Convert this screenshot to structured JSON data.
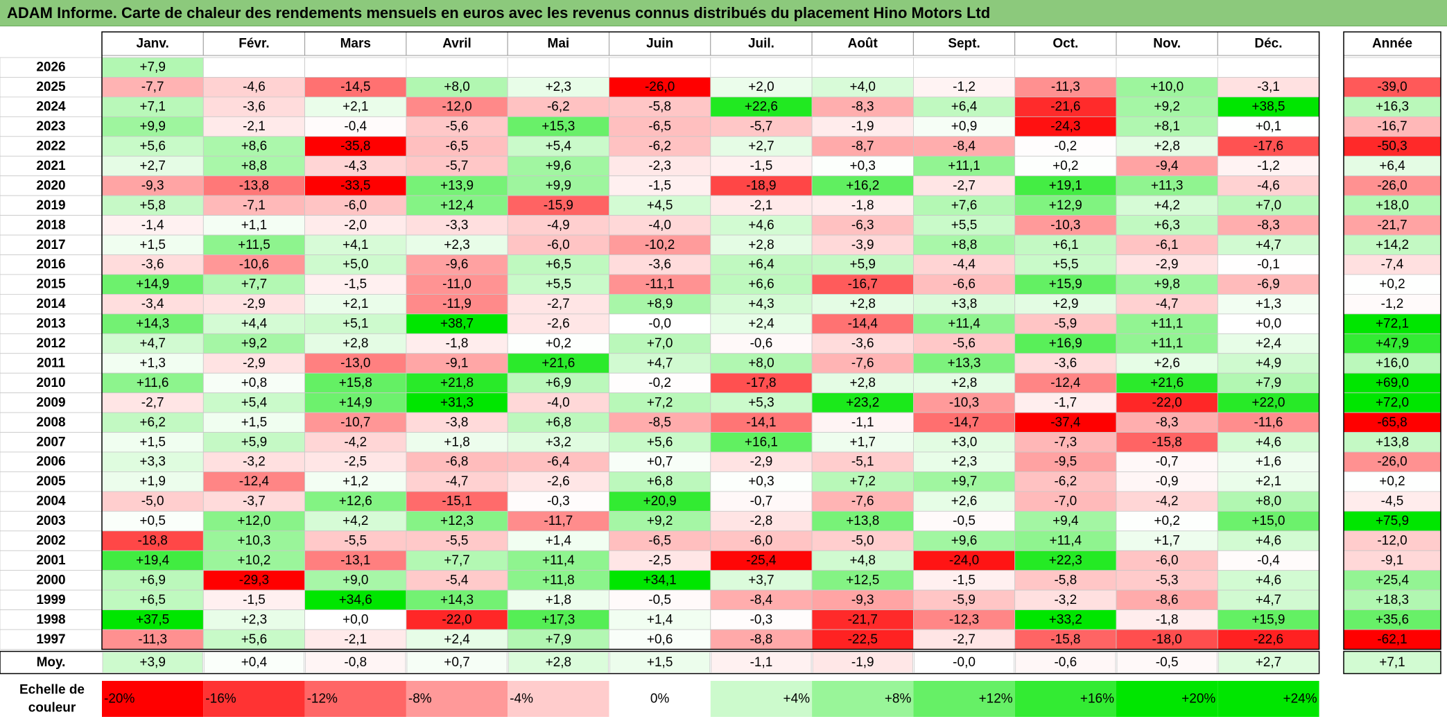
{
  "title": "ADAM Informe. Carte de chaleur des rendements mensuels en euros avec les revenus connus distribués du placement Hino Motors Ltd",
  "chart_data": {
    "type": "heatmap",
    "months": [
      "Janv.",
      "Févr.",
      "Mars",
      "Avril",
      "Mai",
      "Juin",
      "Juil.",
      "Août",
      "Sept.",
      "Oct.",
      "Nov.",
      "Déc."
    ],
    "year_header": "Année",
    "rows": [
      {
        "year": "2026",
        "values": [
          "+7,9",
          "",
          "",
          "",
          "",
          "",
          "",
          "",
          "",
          "",
          "",
          ""
        ],
        "annual": ""
      },
      {
        "year": "2025",
        "values": [
          "-7,7",
          "-4,6",
          "-14,5",
          "+8,0",
          "+2,3",
          "-26,0",
          "+2,0",
          "+4,0",
          "-1,2",
          "-11,3",
          "+10,0",
          "-3,1"
        ],
        "annual": "-39,0"
      },
      {
        "year": "2024",
        "values": [
          "+7,1",
          "-3,6",
          "+2,1",
          "-12,0",
          "-6,2",
          "-5,8",
          "+22,6",
          "-8,3",
          "+6,4",
          "-21,6",
          "+9,2",
          "+38,5"
        ],
        "annual": "+16,3"
      },
      {
        "year": "2023",
        "values": [
          "+9,9",
          "-2,1",
          "-0,4",
          "-5,6",
          "+15,3",
          "-6,5",
          "-5,7",
          "-1,9",
          "+0,9",
          "-24,3",
          "+8,1",
          "+0,1"
        ],
        "annual": "-16,7"
      },
      {
        "year": "2022",
        "values": [
          "+5,6",
          "+8,6",
          "-35,8",
          "-6,5",
          "+5,4",
          "-6,2",
          "+2,7",
          "-8,7",
          "-8,4",
          "-0,2",
          "+2,8",
          "-17,6"
        ],
        "annual": "-50,3"
      },
      {
        "year": "2021",
        "values": [
          "+2,7",
          "+8,8",
          "-4,3",
          "-5,7",
          "+9,6",
          "-2,3",
          "-1,5",
          "+0,3",
          "+11,1",
          "+0,2",
          "-9,4",
          "-1,2"
        ],
        "annual": "+6,4"
      },
      {
        "year": "2020",
        "values": [
          "-9,3",
          "-13,8",
          "-33,5",
          "+13,9",
          "+9,9",
          "-1,5",
          "-18,9",
          "+16,2",
          "-2,7",
          "+19,1",
          "+11,3",
          "-4,6"
        ],
        "annual": "-26,0"
      },
      {
        "year": "2019",
        "values": [
          "+5,8",
          "-7,1",
          "-6,0",
          "+12,4",
          "-15,9",
          "+4,5",
          "-2,1",
          "-1,8",
          "+7,6",
          "+12,9",
          "+4,2",
          "+7,0"
        ],
        "annual": "+18,0"
      },
      {
        "year": "2018",
        "values": [
          "-1,4",
          "+1,1",
          "-2,0",
          "-3,3",
          "-4,9",
          "-4,0",
          "+4,6",
          "-6,3",
          "+5,5",
          "-10,3",
          "+6,3",
          "-8,3"
        ],
        "annual": "-21,7"
      },
      {
        "year": "2017",
        "values": [
          "+1,5",
          "+11,5",
          "+4,1",
          "+2,3",
          "-6,0",
          "-10,2",
          "+2,8",
          "-3,9",
          "+8,8",
          "+6,1",
          "-6,1",
          "+4,7"
        ],
        "annual": "+14,2"
      },
      {
        "year": "2016",
        "values": [
          "-3,6",
          "-10,6",
          "+5,0",
          "-9,6",
          "+6,5",
          "-3,6",
          "+6,4",
          "+5,9",
          "-4,4",
          "+5,5",
          "-2,9",
          "-0,1"
        ],
        "annual": "-7,4"
      },
      {
        "year": "2015",
        "values": [
          "+14,9",
          "+7,7",
          "-1,5",
          "-11,0",
          "+5,5",
          "-11,1",
          "+6,6",
          "-16,7",
          "-6,6",
          "+15,9",
          "+9,8",
          "-6,9"
        ],
        "annual": "+0,2"
      },
      {
        "year": "2014",
        "values": [
          "-3,4",
          "-2,9",
          "+2,1",
          "-11,9",
          "-2,7",
          "+8,9",
          "+4,3",
          "+2,8",
          "+3,8",
          "+2,9",
          "-4,7",
          "+1,3"
        ],
        "annual": "-1,2"
      },
      {
        "year": "2013",
        "values": [
          "+14,3",
          "+4,4",
          "+5,1",
          "+38,7",
          "-2,6",
          "-0,0",
          "+2,4",
          "-14,4",
          "+11,4",
          "-5,9",
          "+11,1",
          "+0,0"
        ],
        "annual": "+72,1"
      },
      {
        "year": "2012",
        "values": [
          "+4,7",
          "+9,2",
          "+2,8",
          "-1,8",
          "+0,2",
          "+7,0",
          "-0,6",
          "-3,6",
          "-5,6",
          "+16,9",
          "+11,1",
          "+2,4"
        ],
        "annual": "+47,9"
      },
      {
        "year": "2011",
        "values": [
          "+1,3",
          "-2,9",
          "-13,0",
          "-9,1",
          "+21,6",
          "+4,7",
          "+8,0",
          "-7,6",
          "+13,3",
          "-3,6",
          "+2,6",
          "+4,9"
        ],
        "annual": "+16,0"
      },
      {
        "year": "2010",
        "values": [
          "+11,6",
          "+0,8",
          "+15,8",
          "+21,8",
          "+6,9",
          "-0,2",
          "-17,8",
          "+2,8",
          "+2,8",
          "-12,4",
          "+21,6",
          "+7,9"
        ],
        "annual": "+69,0"
      },
      {
        "year": "2009",
        "values": [
          "-2,7",
          "+5,4",
          "+14,9",
          "+31,3",
          "-4,0",
          "+7,2",
          "+5,3",
          "+23,2",
          "-10,3",
          "-1,7",
          "-22,0",
          "+22,0"
        ],
        "annual": "+72,0"
      },
      {
        "year": "2008",
        "values": [
          "+6,2",
          "+1,5",
          "-10,7",
          "-3,8",
          "+6,8",
          "-8,5",
          "-14,1",
          "-1,1",
          "-14,7",
          "-37,4",
          "-8,3",
          "-11,6"
        ],
        "annual": "-65,8"
      },
      {
        "year": "2007",
        "values": [
          "+1,5",
          "+5,9",
          "-4,2",
          "+1,8",
          "+3,2",
          "+5,6",
          "+16,1",
          "+1,7",
          "+3,0",
          "-7,3",
          "-15,8",
          "+4,6"
        ],
        "annual": "+13,8"
      },
      {
        "year": "2006",
        "values": [
          "+3,3",
          "-3,2",
          "-2,5",
          "-6,8",
          "-6,4",
          "+0,7",
          "-2,9",
          "-5,1",
          "+2,3",
          "-9,5",
          "-0,7",
          "+1,6"
        ],
        "annual": "-26,0"
      },
      {
        "year": "2005",
        "values": [
          "+1,9",
          "-12,4",
          "+1,2",
          "-4,7",
          "-2,6",
          "+6,8",
          "+0,3",
          "+7,2",
          "+9,7",
          "-6,2",
          "-0,9",
          "+2,1"
        ],
        "annual": "+0,2"
      },
      {
        "year": "2004",
        "values": [
          "-5,0",
          "-3,7",
          "+12,6",
          "-15,1",
          "-0,3",
          "+20,9",
          "-0,7",
          "-7,6",
          "+2,6",
          "-7,0",
          "-4,2",
          "+8,0"
        ],
        "annual": "-4,5"
      },
      {
        "year": "2003",
        "values": [
          "+0,5",
          "+12,0",
          "+4,2",
          "+12,3",
          "-11,7",
          "+9,2",
          "-2,8",
          "+13,8",
          "-0,5",
          "+9,4",
          "+0,2",
          "+15,0"
        ],
        "annual": "+75,9"
      },
      {
        "year": "2002",
        "values": [
          "-18,8",
          "+10,3",
          "-5,5",
          "-5,5",
          "+1,4",
          "-6,5",
          "-6,0",
          "-5,0",
          "+9,6",
          "+11,4",
          "+1,7",
          "+4,6"
        ],
        "annual": "-12,0"
      },
      {
        "year": "2001",
        "values": [
          "+19,4",
          "+10,2",
          "-13,1",
          "+7,7",
          "+11,4",
          "-2,5",
          "-25,4",
          "+4,8",
          "-24,0",
          "+22,3",
          "-6,0",
          "-0,4"
        ],
        "annual": "-9,1"
      },
      {
        "year": "2000",
        "values": [
          "+6,9",
          "-29,3",
          "+9,0",
          "-5,4",
          "+11,8",
          "+34,1",
          "+3,7",
          "+12,5",
          "-1,5",
          "-5,8",
          "-5,3",
          "+4,6"
        ],
        "annual": "+25,4"
      },
      {
        "year": "1999",
        "values": [
          "+6,5",
          "-1,5",
          "+34,6",
          "+14,3",
          "+1,8",
          "-0,5",
          "-8,4",
          "-9,3",
          "-5,9",
          "-3,2",
          "-8,6",
          "+4,7"
        ],
        "annual": "+18,3"
      },
      {
        "year": "1998",
        "values": [
          "+37,5",
          "+2,3",
          "+0,0",
          "-22,0",
          "+17,3",
          "+1,4",
          "-0,3",
          "-21,7",
          "-12,3",
          "+33,2",
          "-1,8",
          "+15,9"
        ],
        "annual": "+35,6"
      },
      {
        "year": "1997",
        "values": [
          "-11,3",
          "+5,6",
          "-2,1",
          "+2,4",
          "+7,9",
          "+0,6",
          "-8,8",
          "-22,5",
          "-2,7",
          "-15,8",
          "-18,0",
          "-22,6"
        ],
        "annual": "-62,1"
      }
    ],
    "average": {
      "label": "Moy.",
      "values": [
        "+3,9",
        "+0,4",
        "-0,8",
        "+0,7",
        "+2,8",
        "+1,5",
        "-1,1",
        "-1,9",
        "-0,0",
        "-0,6",
        "-0,5",
        "+2,7"
      ],
      "annual": "+7,1"
    },
    "scale": {
      "label_line1": "Echelle de",
      "label_line2": "couleur",
      "stops": [
        "-20%",
        "-16%",
        "-12%",
        "-8%",
        "-4%",
        "0%",
        "+4%",
        "+8%",
        "+12%",
        "+16%",
        "+20%",
        "+24%"
      ]
    },
    "colors": {
      "strong_red": "#ff0000",
      "strong_green": "#00e600",
      "neutral": "#ffffff",
      "header_bar": "#8cc97c"
    }
  }
}
